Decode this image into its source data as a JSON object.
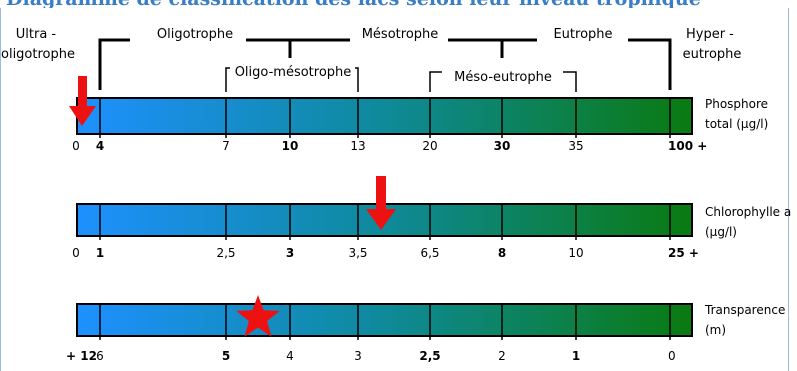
{
  "title": "Diagramme de classification des lacs selon leur niveau trophique",
  "categories": {
    "ultra": [
      "Ultra -",
      "oligotrophe"
    ],
    "oligotrophe": "Oligotrophe",
    "mesotrophe": "Mésotrophe",
    "eutrophe": "Eutrophe",
    "hyper": [
      "Hyper -",
      "eutrophe"
    ],
    "oligo_meso": "Oligo-mésotrophe",
    "meso_eu": "Méso-eutrophe"
  },
  "scales": [
    {
      "name": "phosphore",
      "label": [
        "Phosphore",
        "total (µg/l)"
      ],
      "ticks": [
        "0",
        "4",
        "7",
        "10",
        "13",
        "20",
        "30",
        "35",
        "100 +"
      ],
      "bold": [
        false,
        true,
        false,
        true,
        false,
        false,
        true,
        false,
        true
      ]
    },
    {
      "name": "chlorophylle",
      "label": [
        "Chlorophylle a",
        "(µg/l)"
      ],
      "ticks": [
        "0",
        "1",
        "2,5",
        "3",
        "3,5",
        "6,5",
        "8",
        "10",
        "25 +"
      ],
      "bold": [
        false,
        true,
        false,
        true,
        false,
        false,
        true,
        false,
        true
      ]
    },
    {
      "name": "transparence",
      "label": [
        "Transparence",
        "(m)"
      ],
      "ticks": [
        "+ 12",
        "6",
        "5",
        "4",
        "3",
        "2,5",
        "2",
        "1",
        "0"
      ],
      "bold": [
        true,
        false,
        true,
        false,
        false,
        true,
        false,
        true,
        false
      ]
    }
  ],
  "markers": [
    {
      "name": "phosphore-arrow",
      "scale": "phosphore",
      "shape": "arrow",
      "value_text": "0"
    },
    {
      "name": "chlorophylle-arrow",
      "scale": "chlorophylle",
      "shape": "arrow",
      "value_text": "entre 3,5 et 6,5"
    },
    {
      "name": "transparence-star",
      "scale": "transparence",
      "shape": "star",
      "value_text": "entre 6 et 5"
    }
  ],
  "colors": {
    "bar_left": "#1e90ff",
    "bar_mid": "#0e8a9a",
    "bar_right": "#0a7a10",
    "marker": "#ee1111",
    "frame": "#9dbbe0",
    "title": "#3a7ec4"
  }
}
